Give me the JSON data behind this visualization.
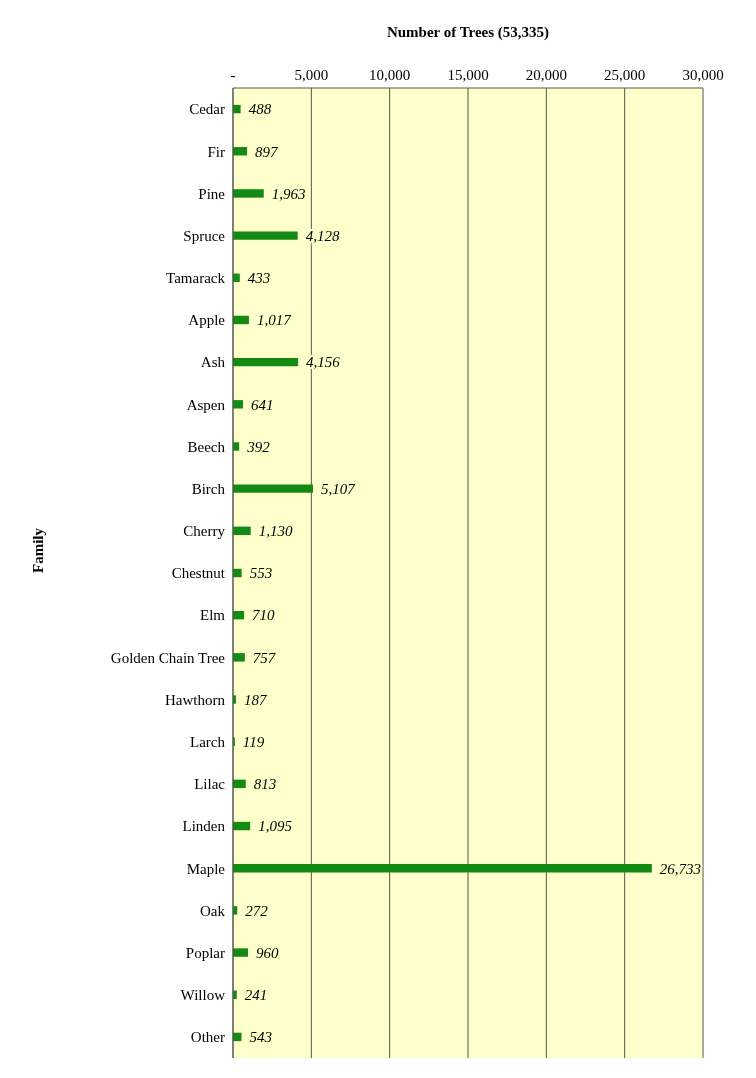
{
  "chart_data": {
    "type": "bar",
    "orientation": "horizontal",
    "xlabel": "Number of Trees (53,335)",
    "ylabel": "Family",
    "categories": [
      "Cedar",
      "Fir",
      "Pine",
      "Spruce",
      "Tamarack",
      "Apple",
      "Ash",
      "Aspen",
      "Beech",
      "Birch",
      "Cherry",
      "Chestnut",
      "Elm",
      "Golden Chain Tree",
      "Hawthorn",
      "Larch",
      "Lilac",
      "Linden",
      "Maple",
      "Oak",
      "Poplar",
      "Willow",
      "Other"
    ],
    "values": [
      488,
      897,
      1963,
      4128,
      433,
      1017,
      4156,
      641,
      392,
      5107,
      1130,
      553,
      710,
      757,
      187,
      119,
      813,
      1095,
      26733,
      272,
      960,
      241,
      543
    ],
    "color": "#138a13",
    "xlim": [
      0,
      30000
    ],
    "xticks": [
      {
        "value": 0,
        "label": "-"
      },
      {
        "value": 5000,
        "label": "5,000"
      },
      {
        "value": 10000,
        "label": "10,000"
      },
      {
        "value": 15000,
        "label": "15,000"
      },
      {
        "value": 20000,
        "label": "20,000"
      },
      {
        "value": 25000,
        "label": "25,000"
      },
      {
        "value": 30000,
        "label": "30,000"
      }
    ],
    "value_labels": [
      "488",
      "897",
      "1,963",
      "4,128",
      "433",
      "1,017",
      "4,156",
      "641",
      "392",
      "5,107",
      "1,130",
      "553",
      "710",
      "757",
      "187",
      "119",
      "813",
      "1,095",
      "26,733",
      "272",
      "960",
      "241",
      "543"
    ],
    "grid": "x"
  }
}
